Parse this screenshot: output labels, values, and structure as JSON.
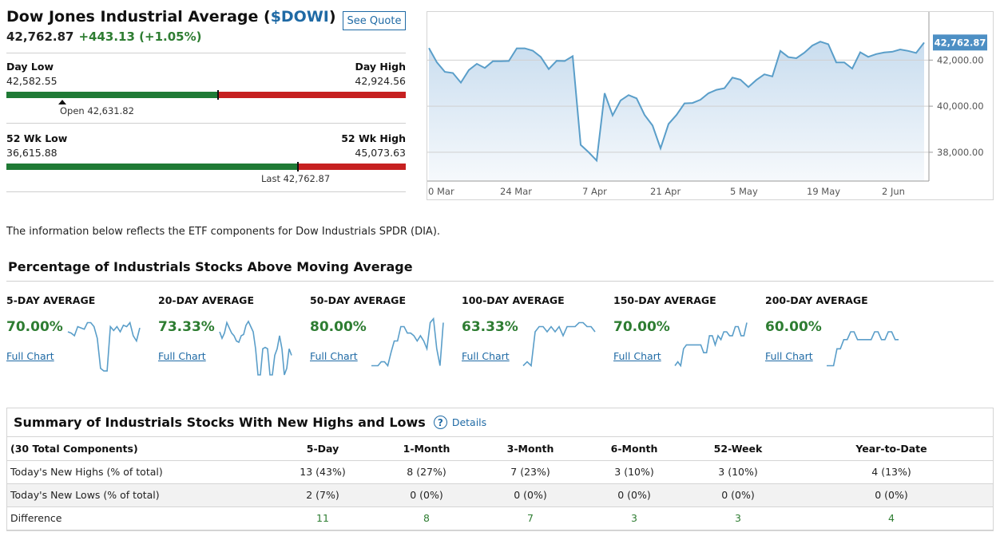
{
  "quote": {
    "name": "Dow Jones Industrial Average (",
    "symbol": "$DOWI",
    "name_close": ")",
    "see_quote": "See Quote",
    "last": "42,762.87",
    "change": "+443.13 (+1.05%)",
    "day_low_label": "Day Low",
    "day_low": "42,582.55",
    "day_high_label": "Day High",
    "day_high": "42,924.56",
    "day_range_fraction": 0.53,
    "open_label": "Open 42,631.82",
    "open_fraction": 0.14,
    "wk52_low_label": "52 Wk Low",
    "wk52_low": "36,615.88",
    "wk52_high_label": "52 Wk High",
    "wk52_high": "45,073.63",
    "wk52_fraction": 0.73,
    "last_label": "Last 42,762.87"
  },
  "price_chart": {
    "x_labels": [
      "0 Mar",
      "24 Mar",
      "7 Apr",
      "21 Apr",
      "5 May",
      "19 May",
      "2 Jun"
    ],
    "y_labels": [
      "42,000.00",
      "40,000.00",
      "38,000.00"
    ],
    "y_ticks": [
      42000,
      40000,
      38000
    ],
    "ylim": [
      36750,
      43950
    ],
    "last_badge": "42,762.87",
    "last_value": 42762.87,
    "values": [
      42520,
      41900,
      41490,
      41440,
      41020,
      41570,
      41840,
      41660,
      41950,
      41950,
      41960,
      42510,
      42510,
      42410,
      42140,
      41610,
      41970,
      41960,
      42170,
      38320,
      38000,
      37640,
      40560,
      39600,
      40250,
      40480,
      40340,
      39620,
      39160,
      38170,
      39230,
      39620,
      40120,
      40140,
      40280,
      40560,
      40710,
      40780,
      41240,
      41150,
      40830,
      41140,
      41380,
      41290,
      42400,
      42130,
      42080,
      42320,
      42630,
      42800,
      42690,
      41900,
      41900,
      41630,
      42340,
      42140,
      42260,
      42330,
      42360,
      42460,
      42400,
      42310,
      42760
    ]
  },
  "info_text": "The information below reflects the ETF components for Dow Industrials SPDR (DIA).",
  "ma_section_title": "Percentage of Industrials Stocks Above Moving Average",
  "ma_items": [
    {
      "label": "5-DAY AVERAGE",
      "pct": "70.00%",
      "link": "Full Chart",
      "spark": [
        73,
        72,
        70,
        77,
        76,
        75,
        80,
        80,
        77,
        68,
        45,
        43,
        43,
        77,
        74,
        77,
        73,
        78,
        77,
        80,
        70,
        66,
        76
      ]
    },
    {
      "label": "20-DAY AVERAGE",
      "pct": "73.33%",
      "link": "Full Chart",
      "spark": [
        73,
        68,
        72,
        80,
        76,
        72,
        70,
        66,
        65,
        70,
        71,
        78,
        81,
        77,
        73,
        60,
        40,
        40,
        60,
        61,
        60,
        40,
        40,
        55,
        60,
        70,
        60,
        40,
        45,
        60,
        55
      ]
    },
    {
      "label": "50-DAY AVERAGE",
      "pct": "80.00%",
      "link": "Full Chart",
      "spark": [
        47,
        47,
        47,
        50,
        50,
        47,
        57,
        66,
        66,
        77,
        77,
        72,
        72,
        70,
        66,
        70,
        66,
        60,
        80,
        83,
        60,
        47,
        80
      ]
    },
    {
      "label": "100-DAY AVERAGE",
      "pct": "63.33%",
      "link": "Full Chart",
      "spark": [
        47,
        50,
        47,
        73,
        77,
        77,
        73,
        77,
        73,
        77,
        70,
        77,
        77,
        77,
        80,
        80,
        77,
        77,
        73
      ]
    },
    {
      "label": "150-DAY AVERAGE",
      "pct": "70.00%",
      "link": "Full Chart",
      "spark": [
        47,
        50,
        47,
        60,
        63,
        63,
        63,
        63,
        63,
        63,
        57,
        57,
        70,
        70,
        63,
        70,
        67,
        73,
        73,
        70,
        70,
        77,
        77,
        70,
        70,
        80
      ]
    },
    {
      "label": "200-DAY AVERAGE",
      "pct": "60.00%",
      "link": "Full Chart",
      "spark": [
        47,
        47,
        47,
        60,
        60,
        67,
        67,
        73,
        73,
        67,
        67,
        67,
        67,
        67,
        73,
        73,
        67,
        67,
        73,
        73,
        67,
        67
      ]
    }
  ],
  "summary": {
    "title": "Summary of Industrials Stocks With New Highs and Lows",
    "details": "Details",
    "columns": [
      "(30 Total Components)",
      "5-Day",
      "1-Month",
      "3-Month",
      "6-Month",
      "52-Week",
      "Year-to-Date"
    ],
    "rows": [
      {
        "label": "Today's New Highs (% of total)",
        "cells": [
          "13 (43%)",
          "8 (27%)",
          "7 (23%)",
          "3 (10%)",
          "3 (10%)",
          "4 (13%)"
        ]
      },
      {
        "label": "Today's New Lows (% of total)",
        "cells": [
          "2 (7%)",
          "0 (0%)",
          "0 (0%)",
          "0 (0%)",
          "0 (0%)",
          "0 (0%)"
        ]
      },
      {
        "label": "Difference",
        "cells": [
          "11",
          "8",
          "7",
          "3",
          "3",
          "4"
        ]
      }
    ]
  },
  "colors": {
    "accent": "#1f6aa5",
    "positive": "#2e7d32",
    "bar_green": "#1f7a35",
    "bar_red": "#c62020",
    "line": "#5a9ec9"
  }
}
